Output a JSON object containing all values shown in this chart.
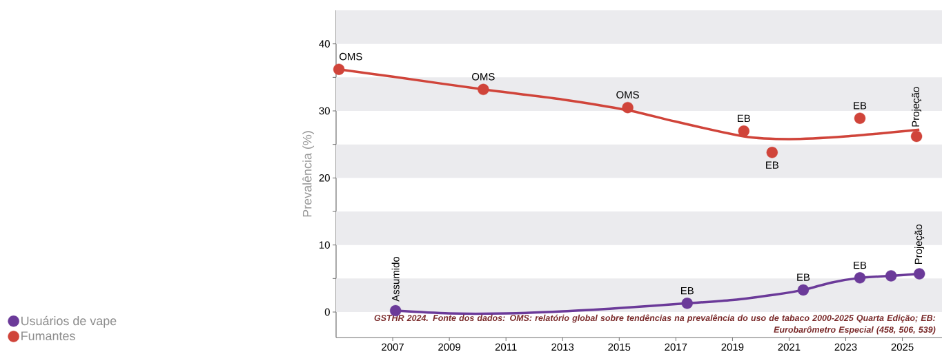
{
  "chart_data": {
    "type": "scatter",
    "ylabel": "Prevalência (%)",
    "xlim": [
      2005,
      2026.4
    ],
    "ylim": [
      -3.8,
      45
    ],
    "xticks": [
      2007,
      2009,
      2011,
      2013,
      2015,
      2017,
      2019,
      2021,
      2023,
      2025
    ],
    "yticks": [
      0,
      {
        "value": 5,
        "label": null
      },
      10,
      {
        "value": 15,
        "label": null
      },
      20,
      {
        "value": 25,
        "label": null
      },
      30,
      {
        "value": 35,
        "label": null
      },
      40
    ],
    "bands": [
      {
        "axis": "y",
        "from": 0,
        "to": 5,
        "color": "#ebebee"
      },
      {
        "axis": "y",
        "from": 10,
        "to": 15,
        "color": "#ebebee"
      },
      {
        "axis": "y",
        "from": 20,
        "to": 25,
        "color": "#ebebee"
      },
      {
        "axis": "y",
        "from": 30,
        "to": 35,
        "color": "#ebebee"
      },
      {
        "axis": "y",
        "from": 40,
        "to": 45,
        "color": "#ebebee"
      }
    ],
    "marker": "circle",
    "legend": "left",
    "grid": false,
    "series": [
      {
        "name": "Usuários de vape",
        "color": "#6b3a99",
        "x": [
          2007.1,
          2017.4,
          2021.5,
          2023.5,
          2024.6,
          2025.6
        ],
        "values": [
          0.2,
          1.3,
          3.3,
          5.1,
          5.4,
          5.7
        ]
      },
      {
        "name": "Fumantes",
        "color": "#d0443a",
        "x": [
          2005.1,
          2010.2,
          2015.3,
          2019.4,
          2020.4,
          2023.5,
          2025.5
        ],
        "values": [
          36.2,
          33.2,
          30.5,
          27.0,
          23.8,
          28.9,
          26.2
        ]
      },
      {
        "type": "line",
        "marker": "none",
        "color": "#d0443a",
        "x": [
          2005.1,
          2007,
          2010.2,
          2013,
          2015.3,
          2017,
          2019.4,
          2021,
          2023,
          2025.6
        ],
        "values": [
          36.2,
          35.1,
          33.2,
          31.7,
          30.1,
          28.4,
          26.2,
          25.8,
          26.2,
          27.2
        ]
      },
      {
        "type": "line",
        "marker": "none",
        "color": "#6b3a99",
        "x": [
          2007.1,
          2009,
          2011,
          2013,
          2015,
          2017.4,
          2019,
          2020.5,
          2021.5,
          2022.5,
          2023.5,
          2024.6,
          2025.6
        ],
        "values": [
          0.2,
          -0.2,
          -0.2,
          0.1,
          0.6,
          1.3,
          1.8,
          2.6,
          3.3,
          4.4,
          5.1,
          5.4,
          5.7
        ]
      }
    ],
    "annotations": [
      {
        "text": "OMS",
        "x": 2005.1,
        "y": 36.2
      },
      {
        "text": "OMS",
        "x": 2010.2,
        "y": 33.2
      },
      {
        "text": "OMS",
        "x": 2015.3,
        "y": 30.5
      },
      {
        "text": "EB",
        "x": 2019.4,
        "y": 27.0
      },
      {
        "text": "EB",
        "x": 2020.4,
        "y": 23.8
      },
      {
        "text": "EB",
        "x": 2023.5,
        "y": 28.9
      },
      {
        "text": "Projeção",
        "x": 2025.5,
        "y": 26.2
      },
      {
        "text": "Assumido",
        "x": 2007.1,
        "y": 0.2
      },
      {
        "text": "EB",
        "x": 2017.4,
        "y": 1.3
      },
      {
        "text": "EB",
        "x": 2021.5,
        "y": 3.3
      },
      {
        "text": "EB",
        "x": 2023.5,
        "y": 5.1
      },
      {
        "text": "Projeção",
        "x": 2025.6,
        "y": 5.7
      },
      "GSTHR 2024. Fonte dos dados: OMS: relatório global sobre tendências na prevalência do uso de tabaco 2000-2025 Quarta Edição; EB: Eurobarômetro Especial (458, 506, 539)"
    ]
  }
}
